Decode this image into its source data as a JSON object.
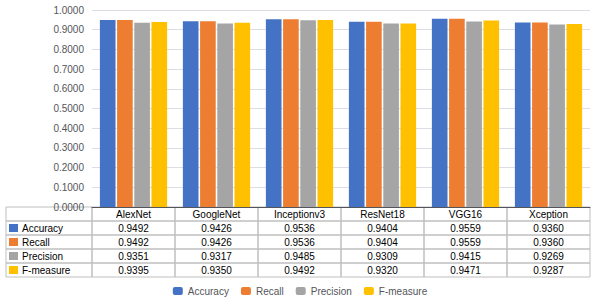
{
  "chart_data": {
    "type": "bar",
    "categories": [
      "AlexNet",
      "GoogleNet",
      "Inceptionv3",
      "ResNet18",
      "VGG16",
      "Xception"
    ],
    "series": [
      {
        "name": "Accuracy",
        "color": "#4472C4",
        "values": [
          0.9492,
          0.9426,
          0.9536,
          0.9404,
          0.9559,
          0.936
        ],
        "value_labels": [
          "0.9492",
          "0.9426",
          "0.9536",
          "0.9404",
          "0.9559",
          "0.9360"
        ]
      },
      {
        "name": "Recall",
        "color": "#ED7D31",
        "values": [
          0.9492,
          0.9426,
          0.9536,
          0.9404,
          0.9559,
          0.936
        ],
        "value_labels": [
          "0.9492",
          "0.9426",
          "0.9536",
          "0.9404",
          "0.9559",
          "0.9360"
        ]
      },
      {
        "name": "Precision",
        "color": "#A5A5A5",
        "values": [
          0.9351,
          0.9317,
          0.9485,
          0.9309,
          0.9415,
          0.9269
        ],
        "value_labels": [
          "0.9351",
          "0.9317",
          "0.9485",
          "0.9309",
          "0.9415",
          "0.9269"
        ]
      },
      {
        "name": "F-measure",
        "color": "#FFC000",
        "values": [
          0.9395,
          0.935,
          0.9492,
          0.932,
          0.9471,
          0.9287
        ],
        "value_labels": [
          "0.9395",
          "0.9350",
          "0.9492",
          "0.9320",
          "0.9471",
          "0.9287"
        ]
      }
    ],
    "ylim": [
      0.0,
      1.0
    ],
    "yticks": [
      {
        "value": 0.0,
        "label": "0.0000"
      },
      {
        "value": 0.1,
        "label": "0.1000"
      },
      {
        "value": 0.2,
        "label": "0.2000"
      },
      {
        "value": 0.3,
        "label": "0.3000"
      },
      {
        "value": 0.4,
        "label": "0.4000"
      },
      {
        "value": 0.5,
        "label": "0.5000"
      },
      {
        "value": 0.6,
        "label": "0.6000"
      },
      {
        "value": 0.7,
        "label": "0.7000"
      },
      {
        "value": 0.8,
        "label": "0.8000"
      },
      {
        "value": 0.9,
        "label": "0.9000"
      },
      {
        "value": 1.0,
        "label": "1.0000"
      }
    ],
    "grid": true,
    "legend": "bottom",
    "tick_labels": "y"
  }
}
